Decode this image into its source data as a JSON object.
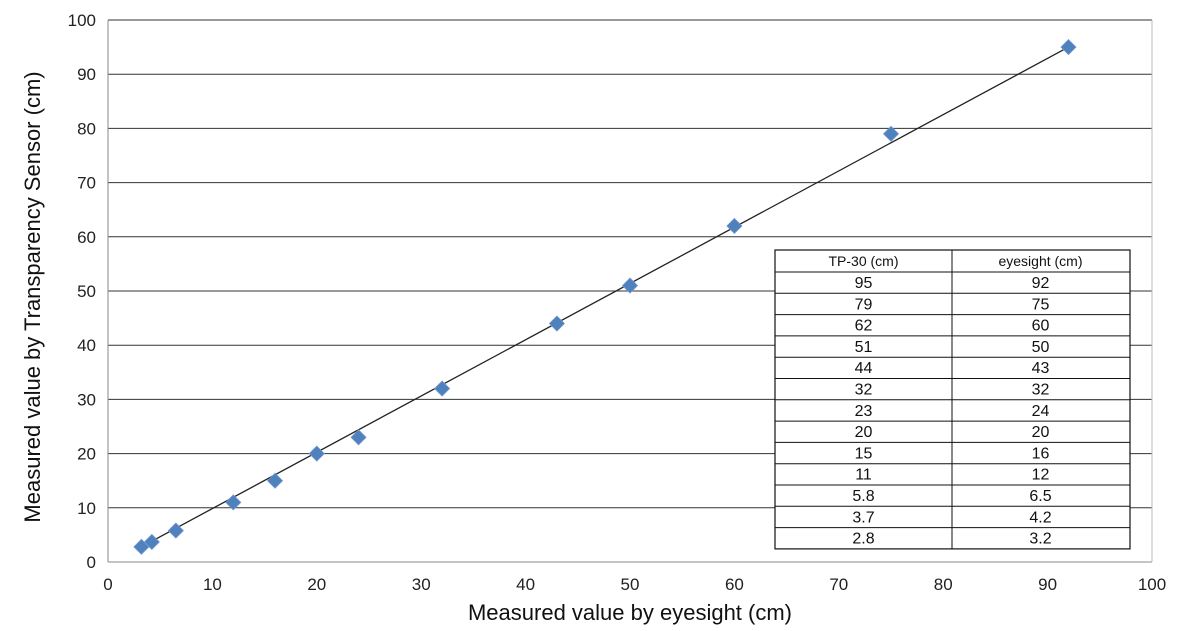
{
  "chart_data": {
    "type": "scatter",
    "xlabel": "Measured value by eyesight (cm)",
    "ylabel": "Measured value by Transparency Sensor (cm)",
    "xlim": [
      0,
      100
    ],
    "ylim": [
      0,
      100
    ],
    "x_ticks": [
      0,
      10,
      20,
      30,
      40,
      50,
      60,
      70,
      80,
      90,
      100
    ],
    "y_ticks": [
      0,
      10,
      20,
      30,
      40,
      50,
      60,
      70,
      80,
      90,
      100
    ],
    "grid": "horizontal",
    "marker_color": "#4f81bd",
    "trendline_color": "#222222",
    "series": [
      {
        "x": [
          92,
          75,
          60,
          50,
          43,
          32,
          24,
          20,
          16,
          12,
          6.5,
          4.2,
          3.2
        ],
        "y": [
          95,
          79,
          62,
          51,
          44,
          32,
          23,
          20,
          15,
          11,
          5.8,
          3.7,
          2.8
        ]
      }
    ],
    "trendline": {
      "x": [
        3.2,
        92
      ],
      "y": [
        2.8,
        95
      ]
    },
    "table": {
      "headers": [
        "TP-30 (cm)",
        "eyesight (cm)"
      ],
      "rows": [
        [
          "95",
          "92"
        ],
        [
          "79",
          "75"
        ],
        [
          "62",
          "60"
        ],
        [
          "51",
          "50"
        ],
        [
          "44",
          "43"
        ],
        [
          "32",
          "32"
        ],
        [
          "23",
          "24"
        ],
        [
          "20",
          "20"
        ],
        [
          "15",
          "16"
        ],
        [
          "11",
          "12"
        ],
        [
          "5.8",
          "6.5"
        ],
        [
          "3.7",
          "4.2"
        ],
        [
          "2.8",
          "3.2"
        ]
      ]
    }
  }
}
